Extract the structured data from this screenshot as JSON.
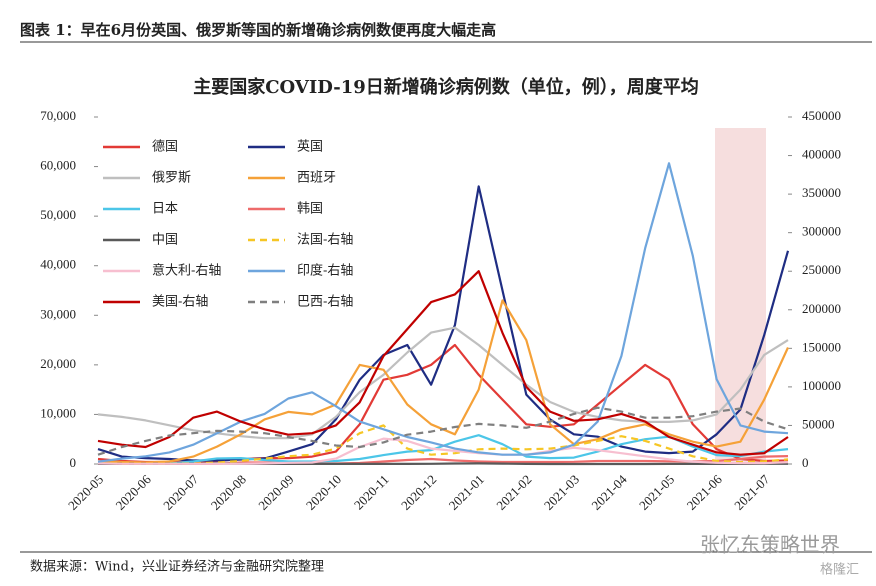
{
  "header": {
    "title": "图表 1：早在6月份英国、俄罗斯等国的新增确诊病例数便再度大幅走高"
  },
  "chart_data": {
    "type": "line",
    "title": "主要国家COVID-19日新增确诊病例数（单位，例），周度平均",
    "categories": [
      "2020-05",
      null,
      "2020-06",
      null,
      "2020-07",
      null,
      "2020-08",
      null,
      "2020-09",
      null,
      "2020-10",
      null,
      "2020-11",
      null,
      "2020-12",
      null,
      "2021-01",
      null,
      "2021-02",
      null,
      "2021-03",
      null,
      "2021-04",
      null,
      "2021-05",
      null,
      "2021-06",
      null,
      "2021-07",
      null
    ],
    "ylim": [
      0,
      70000
    ],
    "yticks": [
      0,
      {
        "value": 10000,
        "label": "10,000"
      },
      {
        "value": 20000,
        "label": "20,000"
      },
      {
        "value": 30000,
        "label": "30,000"
      },
      {
        "value": 40000,
        "label": "40,000"
      },
      {
        "value": 50000,
        "label": "50,000"
      },
      {
        "value": 60000,
        "label": "60,000"
      },
      {
        "value": 70000,
        "label": "70,000"
      }
    ],
    "y2lim": [
      0,
      450000
    ],
    "y2ticks": [
      0,
      50000,
      100000,
      150000,
      200000,
      250000,
      300000,
      350000,
      400000,
      450000
    ],
    "series": [
      {
        "name": "德国",
        "color": "#e23a36",
        "values": [
          1000,
          600,
          400,
          400,
          500,
          600,
          1000,
          1200,
          1200,
          1500,
          2500,
          8000,
          17000,
          18000,
          20000,
          24000,
          18000,
          13000,
          8000,
          7500,
          8000,
          12000,
          16000,
          20000,
          17000,
          8000,
          3000,
          1000,
          600,
          700
        ]
      },
      {
        "name": "英国",
        "color": "#1f2d83",
        "values": [
          3000,
          1500,
          1200,
          1000,
          700,
          700,
          900,
          1100,
          2500,
          4000,
          9000,
          17000,
          22000,
          24000,
          16000,
          28000,
          56000,
          35000,
          14000,
          9000,
          6000,
          5500,
          3500,
          2500,
          2200,
          2500,
          6000,
          11000,
          26000,
          43000
        ]
      },
      {
        "name": "俄罗斯",
        "color": "#bfbfbf",
        "values": [
          10000,
          9500,
          8800,
          7800,
          6800,
          6200,
          5600,
          5200,
          5200,
          6000,
          9500,
          14500,
          18000,
          22500,
          26500,
          27500,
          24000,
          20000,
          16000,
          12500,
          10500,
          9500,
          8800,
          8500,
          8500,
          8800,
          10000,
          15000,
          22000,
          25000
        ]
      },
      {
        "name": "西班牙",
        "color": "#f5a138",
        "values": [
          500,
          400,
          300,
          500,
          1500,
          3500,
          6000,
          9000,
          10500,
          10000,
          12000,
          20000,
          19000,
          12000,
          8000,
          6000,
          15000,
          33000,
          25000,
          8000,
          4000,
          5000,
          7000,
          8000,
          6000,
          4500,
          3500,
          4500,
          13000,
          23500
        ]
      },
      {
        "name": "日本",
        "color": "#4cc6e8",
        "values": [
          100,
          50,
          50,
          100,
          500,
          1100,
          1200,
          800,
          500,
          500,
          600,
          1000,
          1800,
          2500,
          2800,
          4500,
          5800,
          4000,
          1500,
          1200,
          1300,
          2500,
          4000,
          5000,
          5500,
          3500,
          1800,
          1600,
          2500,
          3000
        ]
      },
      {
        "name": "韩国",
        "color": "#ee6b6b",
        "values": [
          20,
          40,
          40,
          40,
          40,
          50,
          300,
          300,
          150,
          80,
          100,
          200,
          500,
          800,
          1000,
          700,
          500,
          400,
          400,
          400,
          450,
          600,
          600,
          600,
          550,
          500,
          600,
          1000,
          1500,
          1600
        ]
      },
      {
        "name": "中国",
        "color": "#595959",
        "values": [
          20,
          20,
          40,
          20,
          80,
          100,
          60,
          20,
          20,
          20,
          20,
          20,
          20,
          20,
          40,
          100,
          120,
          80,
          20,
          10,
          10,
          10,
          10,
          10,
          20,
          20,
          20,
          30,
          40,
          40
        ]
      },
      {
        "name": "法国-右轴",
        "color": "#f6c624",
        "dashed": true,
        "axis": "y2",
        "values": [
          1000,
          500,
          500,
          500,
          700,
          2000,
          4000,
          7000,
          10000,
          12000,
          20000,
          40000,
          50000,
          20000,
          12000,
          14000,
          19000,
          20000,
          19000,
          20000,
          24000,
          30000,
          36000,
          30000,
          20000,
          10000,
          4000,
          2500,
          3500,
          6000
        ]
      },
      {
        "name": "意大利-右轴",
        "color": "#f7bfd0",
        "axis": "y2",
        "values": [
          800,
          300,
          250,
          200,
          250,
          300,
          400,
          800,
          1500,
          2000,
          7000,
          22000,
          33000,
          30000,
          20000,
          17000,
          14000,
          12000,
          12000,
          17000,
          21000,
          18000,
          14000,
          10000,
          6000,
          3000,
          1500,
          1000,
          1200,
          2500
        ]
      },
      {
        "name": "印度-右轴",
        "color": "#6ea5dd",
        "axis": "y2",
        "values": [
          3000,
          7000,
          10000,
          15000,
          25000,
          40000,
          55000,
          65000,
          85000,
          93000,
          75000,
          55000,
          45000,
          35000,
          28000,
          20000,
          15000,
          12000,
          12000,
          15000,
          25000,
          55000,
          140000,
          280000,
          390000,
          270000,
          110000,
          50000,
          42000,
          40000
        ]
      },
      {
        "name": "美国-右轴",
        "color": "#c00000",
        "axis": "y2",
        "values": [
          30000,
          25000,
          22000,
          35000,
          60000,
          68000,
          55000,
          45000,
          38000,
          40000,
          50000,
          80000,
          140000,
          175000,
          210000,
          220000,
          250000,
          170000,
          100000,
          68000,
          56000,
          58000,
          65000,
          55000,
          35000,
          25000,
          15000,
          12000,
          14000,
          35000
        ]
      },
      {
        "name": "巴西-右轴",
        "color": "#7f7f7f",
        "dashed": true,
        "axis": "y2",
        "values": [
          12000,
          22000,
          30000,
          37000,
          40000,
          43000,
          42000,
          40000,
          35000,
          30000,
          24000,
          22000,
          28000,
          38000,
          42000,
          48000,
          52000,
          50000,
          47000,
          55000,
          65000,
          73000,
          68000,
          60000,
          60000,
          62000,
          68000,
          72000,
          55000,
          45000
        ]
      }
    ]
  },
  "footer": {
    "source": "数据来源：Wind，兴业证券经济与金融研究院整理",
    "watermark": "张忆东策略世界",
    "logo": "格隆汇"
  }
}
